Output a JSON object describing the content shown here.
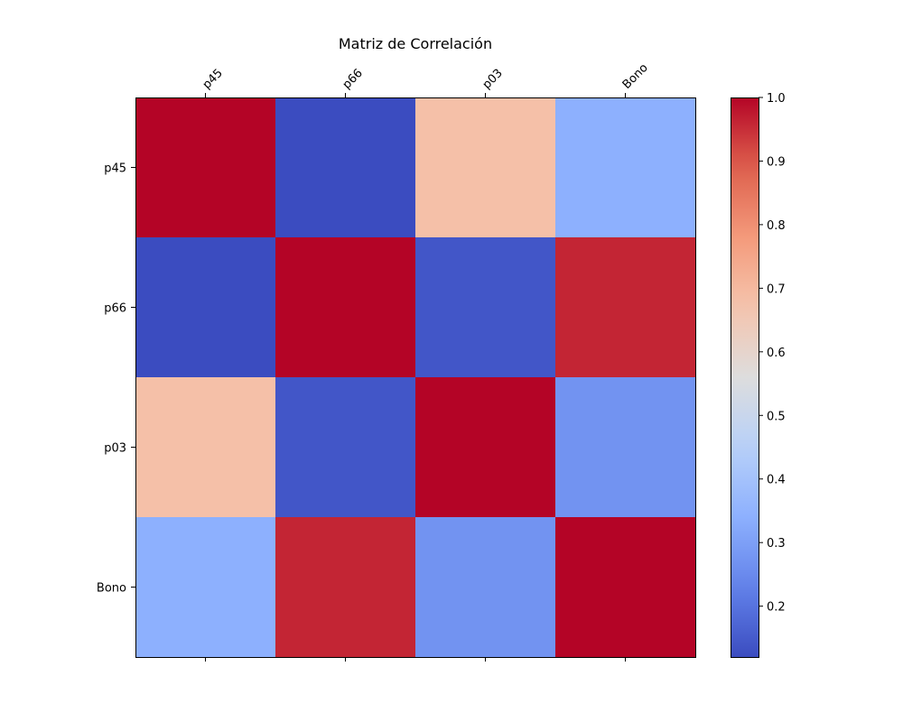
{
  "chart_data": {
    "type": "heatmap",
    "title": "Matriz de Correlación",
    "xlabel": "",
    "ylabel": "",
    "x_categories": [
      "p45",
      "p66",
      "p03",
      "Bono"
    ],
    "y_categories": [
      "p45",
      "p66",
      "p03",
      "Bono"
    ],
    "values": [
      [
        1.0,
        0.12,
        0.68,
        0.34
      ],
      [
        0.12,
        1.0,
        0.14,
        0.96
      ],
      [
        0.68,
        0.14,
        1.0,
        0.27
      ],
      [
        0.34,
        0.96,
        0.27,
        1.0
      ]
    ],
    "colormap": "coolwarm",
    "colorbar": {
      "min": 0.12,
      "max": 1.0,
      "ticks": [
        "0.2",
        "0.3",
        "0.4",
        "0.5",
        "0.6",
        "0.7",
        "0.8",
        "0.9",
        "1.0"
      ]
    },
    "x_tick_position": "top",
    "x_tick_rotation_deg": 45,
    "grid": false
  }
}
